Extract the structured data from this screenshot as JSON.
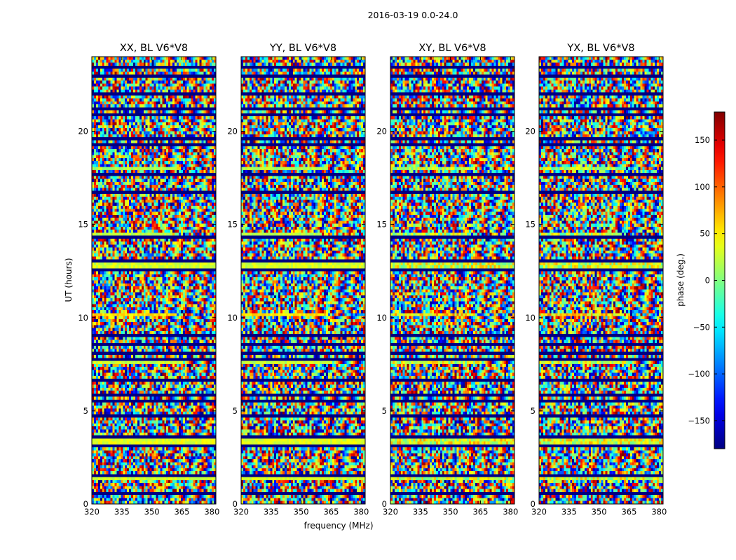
{
  "figure": {
    "suptitle": "2016-03-19 0.0-24.0",
    "xlabel": "frequency (MHz)",
    "ylabel": "UT (hours)"
  },
  "chart_data": {
    "type": "heatmap",
    "colormap": "jet",
    "x_range": [
      320,
      382
    ],
    "y_range": [
      0,
      24
    ],
    "x_ticks": [
      "320",
      "335",
      "350",
      "365",
      "380"
    ],
    "x_tick_values": [
      320,
      335,
      350,
      365,
      380
    ],
    "y_ticks": [
      "0",
      "5",
      "10",
      "15",
      "20"
    ],
    "y_tick_values": [
      0,
      5,
      10,
      15,
      20
    ],
    "colorbar": {
      "label": "phase (deg.)",
      "range": [
        -180,
        180
      ],
      "ticks": [
        "150",
        "100",
        "50",
        "0",
        "−50",
        "−100",
        "−150"
      ],
      "tick_values": [
        150,
        100,
        50,
        0,
        -50,
        -100,
        -150
      ]
    },
    "panels": [
      {
        "title": "XX, BL V6*V8"
      },
      {
        "title": "YY, BL V6*V8"
      },
      {
        "title": "XY, BL V6*V8"
      },
      {
        "title": "YX, BL V6*V8"
      }
    ],
    "flagged_hours": [
      0.45,
      1.5,
      3.05,
      3.55,
      4.75,
      5.4,
      5.75,
      6.6,
      7.7,
      8.1,
      8.5,
      9.0,
      12.6,
      13.1,
      14.3,
      16.7,
      17.7,
      19.3,
      19.7,
      20.9,
      21.3,
      22.1,
      23.0,
      23.5
    ],
    "coherent_bands": [
      {
        "ut": 1.3,
        "phase": 30,
        "until_mhz": 382
      },
      {
        "ut": 3.35,
        "phase": 35,
        "until_mhz": 382
      },
      {
        "ut": 7.6,
        "phase": 25,
        "until_mhz": 365
      },
      {
        "ut": 10.1,
        "phase": 55,
        "until_mhz": 362
      },
      {
        "ut": 12.8,
        "phase": 30,
        "until_mhz": 382
      },
      {
        "ut": 14.5,
        "phase": 20,
        "until_mhz": 360
      },
      {
        "ut": 17.95,
        "phase": 15,
        "until_mhz": 362
      },
      {
        "ut": 23.5,
        "phase": 40,
        "until_mhz": 345
      }
    ]
  }
}
